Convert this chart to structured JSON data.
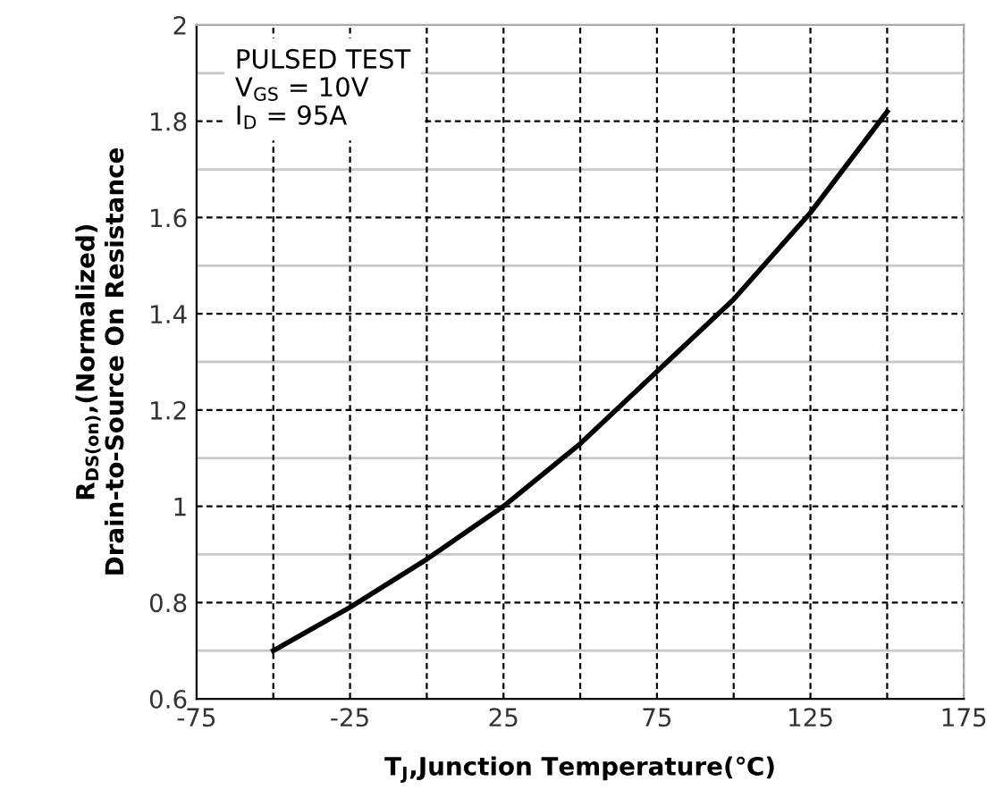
{
  "chart_data": {
    "type": "line",
    "xlabel": "T$_{J}$,Junction Temperature(℃)",
    "ylabel": "R$_{DS(on)}$,(Normalized)\nDrain-to-Source On Resistance",
    "annotations": [
      "PULSED TEST\nV$_{GS}$ = 10V\nI$_{D}$ = 95A"
    ],
    "x": [
      -50,
      -25,
      0,
      25,
      50,
      75,
      100,
      125,
      150
    ],
    "series": [
      {
        "color": "#000000",
        "values": [
          0.7,
          0.79,
          0.89,
          1.0,
          1.13,
          1.28,
          1.43,
          1.61,
          1.82
        ]
      }
    ],
    "xlim": [
      -75,
      175
    ],
    "xticks": [
      -75,
      {
        "value": -50,
        "label": null
      },
      -25,
      {
        "value": 0,
        "label": null
      },
      25,
      {
        "value": 50,
        "label": null
      },
      75,
      {
        "value": 100,
        "label": null
      },
      125,
      {
        "value": 150,
        "label": null
      },
      175
    ],
    "ylim": [
      0.6,
      2
    ],
    "yticks": [
      0.6,
      {
        "value": 0.7,
        "label": null
      },
      0.8,
      {
        "value": 0.9,
        "label": null
      },
      1,
      {
        "value": 1.1,
        "label": null
      },
      1.2,
      {
        "value": 1.3,
        "label": null
      },
      1.4,
      {
        "value": 1.5,
        "label": null
      },
      1.6,
      {
        "value": 1.7,
        "label": null
      },
      1.8,
      {
        "value": 1.9,
        "label": null
      },
      2
    ],
    "grid": true,
    "marker": "none",
    "line_style": "solid",
    "legend": false
  }
}
